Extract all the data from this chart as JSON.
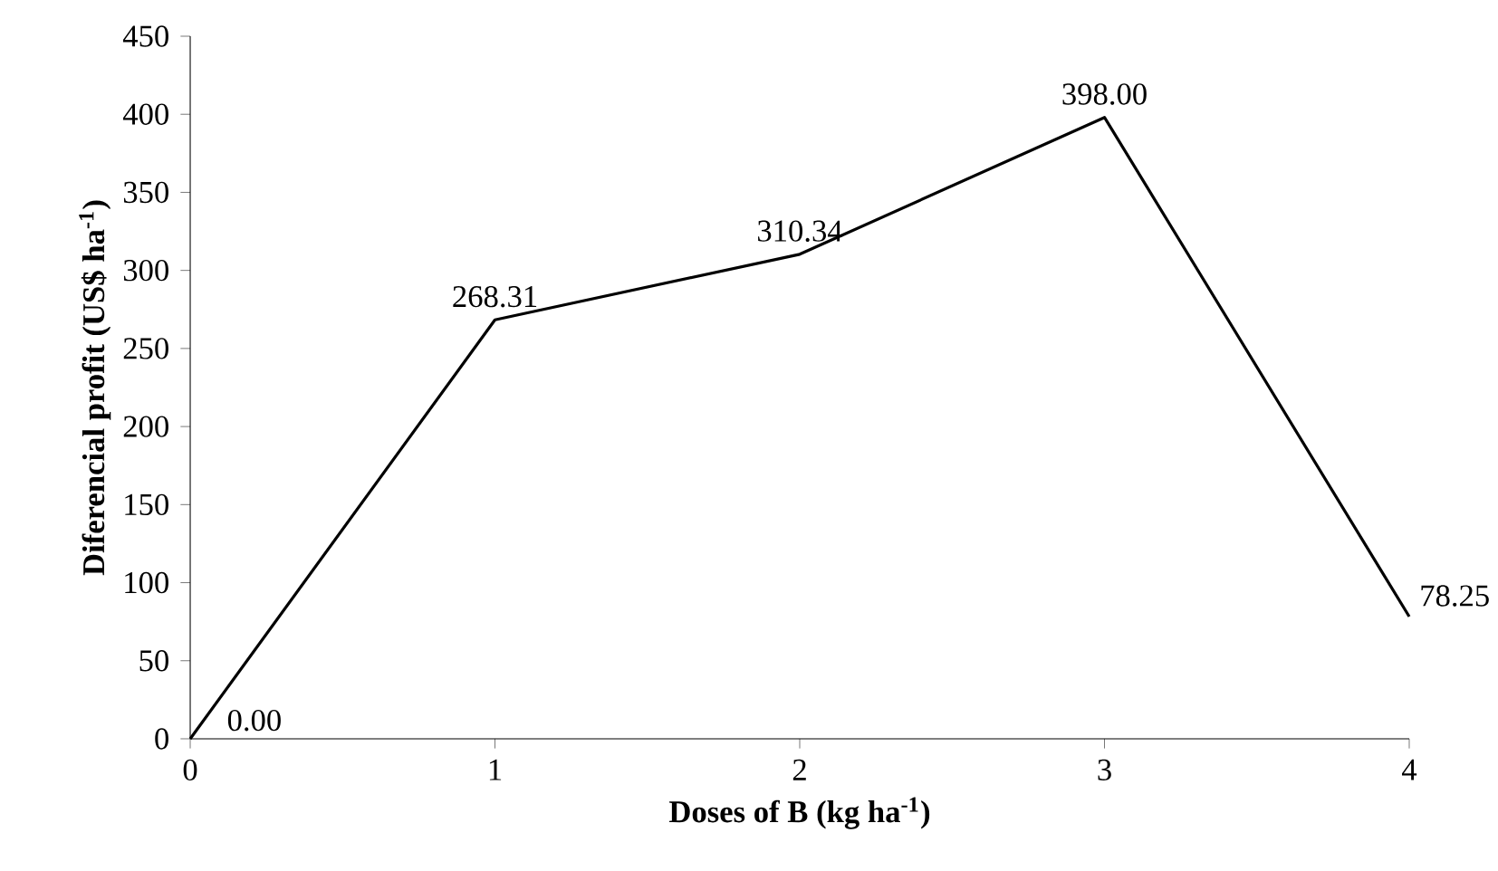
{
  "chart_data": {
    "type": "line",
    "xlabel": "Doses of B (kg ha$^{-1}$)",
    "ylabel": "Diferencial profit  (US$ ha$^{-1}$)",
    "x": [
      0,
      1,
      2,
      3,
      4
    ],
    "series": [
      {
        "color": "#000000",
        "values": [
          0,
          268.31,
          310.34,
          398,
          78.25
        ],
        "value_labels": [
          "0.00",
          "268.31",
          "310.34",
          "398.00",
          "78.25"
        ]
      }
    ],
    "xlim": [
      0,
      4
    ],
    "xticks": [
      0,
      1,
      2,
      3,
      4
    ],
    "ylim": [
      0,
      450
    ],
    "yticks": [
      0,
      50,
      100,
      150,
      200,
      250,
      300,
      350,
      400,
      450
    ]
  }
}
